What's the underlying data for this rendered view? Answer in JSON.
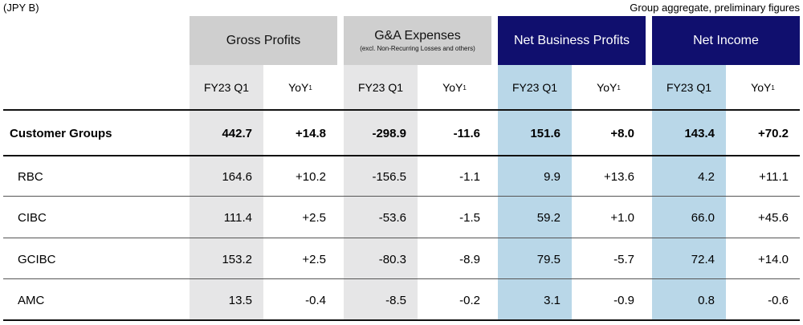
{
  "unit_label": "(JPY B)",
  "note": "Group aggregate, preliminary figures",
  "groups": [
    {
      "title": "Gross Profits",
      "subtitle": "",
      "style": "gray"
    },
    {
      "title": "G&A Expenses",
      "subtitle": "(excl. Non-Recurring Losses and others)",
      "style": "gray"
    },
    {
      "title": "Net Business Profits",
      "subtitle": "",
      "style": "navy"
    },
    {
      "title": "Net Income",
      "subtitle": "",
      "style": "navy"
    }
  ],
  "subheaders": {
    "period": "FY23 Q1",
    "yoy": "YoY",
    "yoy_footnote": "1"
  },
  "rows": [
    {
      "label": "Customer Groups",
      "bold": true,
      "values": [
        "442.7",
        "+14.8",
        "-298.9",
        "-11.6",
        "151.6",
        "+8.0",
        "143.4",
        "+70.2"
      ]
    },
    {
      "label": "RBC",
      "bold": false,
      "values": [
        "164.6",
        "+10.2",
        "-156.5",
        "-1.1",
        "9.9",
        "+13.6",
        "4.2",
        "+11.1"
      ]
    },
    {
      "label": "CIBC",
      "bold": false,
      "values": [
        "111.4",
        "+2.5",
        "-53.6",
        "-1.5",
        "59.2",
        "+1.0",
        "66.0",
        "+45.6"
      ]
    },
    {
      "label": "GCIBC",
      "bold": false,
      "values": [
        "153.2",
        "+2.5",
        "-80.3",
        "-8.9",
        "79.5",
        "-5.7",
        "72.4",
        "+14.0"
      ]
    },
    {
      "label": "AMC",
      "bold": false,
      "values": [
        "13.5",
        "-0.4",
        "-8.5",
        "-0.2",
        "3.1",
        "-0.9",
        "0.8",
        "-0.6"
      ]
    }
  ],
  "colors": {
    "gray_header": "#cfcfcf",
    "navy_header": "#100f6e",
    "gray_shade": "#e6e6e7",
    "blue_shade": "#b9d7e8"
  }
}
